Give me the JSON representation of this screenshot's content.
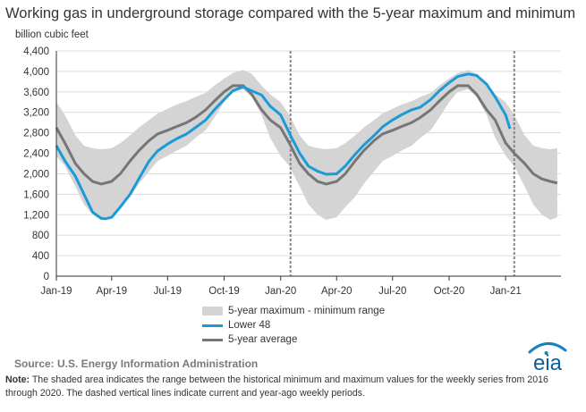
{
  "title": "Working gas in underground storage compared with the 5-year maximum and minimum",
  "source": "Source:  U.S. Energy Information Administration",
  "note_label": "Note:",
  "note_text": " The shaded area indicates the range between the historical minimum and maximum values for the weekly series from 2016 through 2020. The dashed vertical lines indicate current and year-ago weekly periods.",
  "logo_text": "eia",
  "colors": {
    "lower48": "#1a9bd7",
    "average": "#767676",
    "band": "#d4d4d4",
    "dashed": "#888888"
  },
  "chart_data": {
    "type": "line",
    "ylabel": "billion cubic feet",
    "ylim": [
      0,
      4400
    ],
    "yticks": [
      0,
      400,
      800,
      1200,
      1600,
      2000,
      2400,
      2800,
      3200,
      3600,
      4000,
      4400
    ],
    "ytick_labels": [
      "0",
      "400",
      "800",
      "1,200",
      "1,600",
      "2,000",
      "2,400",
      "2,800",
      "3,200",
      "3,600",
      "4,000",
      "4,400"
    ],
    "xlim": [
      "2019-01-01",
      "2021-04-01"
    ],
    "xticks": [
      "2019-01-01",
      "2019-04-01",
      "2019-07-01",
      "2019-10-01",
      "2020-01-01",
      "2020-04-01",
      "2020-07-01",
      "2020-10-01",
      "2021-01-01"
    ],
    "xtick_labels": [
      "Jan-19",
      "Apr-19",
      "Jul-19",
      "Oct-19",
      "Jan-20",
      "Apr-20",
      "Jul-20",
      "Oct-20",
      "Jan-21"
    ],
    "grid": "horizontal",
    "vlines_dashed": [
      "2020-01-17",
      "2021-01-15"
    ],
    "band": {
      "name": "5-year maximum - minimum range",
      "x": [
        "2019-01-01",
        "2019-01-15",
        "2019-02-01",
        "2019-02-15",
        "2019-03-01",
        "2019-03-15",
        "2019-04-01",
        "2019-04-15",
        "2019-05-01",
        "2019-05-15",
        "2019-06-01",
        "2019-06-15",
        "2019-07-01",
        "2019-07-15",
        "2019-08-01",
        "2019-08-15",
        "2019-09-01",
        "2019-09-15",
        "2019-10-01",
        "2019-10-15",
        "2019-11-01",
        "2019-11-15",
        "2019-12-01",
        "2019-12-15",
        "2020-01-01",
        "2020-01-15",
        "2020-02-01",
        "2020-02-15",
        "2020-03-01",
        "2020-03-15",
        "2020-04-01",
        "2020-04-15",
        "2020-05-01",
        "2020-05-15",
        "2020-06-01",
        "2020-06-15",
        "2020-07-01",
        "2020-07-15",
        "2020-08-01",
        "2020-08-15",
        "2020-09-01",
        "2020-09-15",
        "2020-10-01",
        "2020-10-15",
        "2020-11-01",
        "2020-11-15",
        "2020-12-01",
        "2020-12-15",
        "2021-01-01",
        "2021-01-15",
        "2021-02-01",
        "2021-02-15",
        "2021-03-01",
        "2021-03-15",
        "2021-03-26"
      ],
      "upper": [
        3400,
        3150,
        2750,
        2550,
        2500,
        2480,
        2500,
        2600,
        2750,
        2900,
        3050,
        3180,
        3270,
        3350,
        3420,
        3500,
        3580,
        3720,
        3860,
        3970,
        4030,
        3950,
        3720,
        3550,
        3400,
        3150,
        2750,
        2550,
        2500,
        2480,
        2500,
        2600,
        2750,
        2900,
        3050,
        3180,
        3270,
        3350,
        3420,
        3500,
        3580,
        3720,
        3860,
        3970,
        4030,
        3950,
        3720,
        3550,
        3400,
        3150,
        2750,
        2550,
        2500,
        2480,
        2500
      ],
      "lower": [
        2350,
        2150,
        1750,
        1400,
        1200,
        1100,
        1150,
        1350,
        1550,
        1800,
        2050,
        2250,
        2350,
        2450,
        2550,
        2700,
        2850,
        3100,
        3400,
        3600,
        3650,
        3500,
        3150,
        2700,
        2350,
        2150,
        1750,
        1400,
        1200,
        1100,
        1150,
        1350,
        1550,
        1800,
        2050,
        2250,
        2350,
        2450,
        2550,
        2700,
        2850,
        3100,
        3400,
        3600,
        3650,
        3500,
        3150,
        2700,
        2350,
        2150,
        1750,
        1400,
        1200,
        1100,
        1150
      ]
    },
    "series": [
      {
        "name": "Lower 48",
        "x": [
          "2019-01-01",
          "2019-01-15",
          "2019-02-01",
          "2019-02-15",
          "2019-03-01",
          "2019-03-15",
          "2019-03-22",
          "2019-04-01",
          "2019-04-15",
          "2019-05-01",
          "2019-05-15",
          "2019-06-01",
          "2019-06-15",
          "2019-07-01",
          "2019-07-15",
          "2019-08-01",
          "2019-08-15",
          "2019-09-01",
          "2019-09-15",
          "2019-10-01",
          "2019-10-15",
          "2019-11-01",
          "2019-11-15",
          "2019-12-01",
          "2019-12-15",
          "2020-01-01",
          "2020-01-17",
          "2020-02-01",
          "2020-02-15",
          "2020-03-01",
          "2020-03-15",
          "2020-04-01",
          "2020-04-15",
          "2020-05-01",
          "2020-05-15",
          "2020-06-01",
          "2020-06-15",
          "2020-07-01",
          "2020-07-15",
          "2020-08-01",
          "2020-08-15",
          "2020-09-01",
          "2020-09-15",
          "2020-10-01",
          "2020-10-15",
          "2020-11-01",
          "2020-11-15",
          "2020-12-01",
          "2020-12-15",
          "2021-01-01",
          "2021-01-08"
        ],
        "values": [
          2550,
          2250,
          1950,
          1600,
          1250,
          1130,
          1120,
          1150,
          1350,
          1600,
          1900,
          2250,
          2450,
          2580,
          2680,
          2780,
          2900,
          3050,
          3250,
          3450,
          3620,
          3700,
          3620,
          3540,
          3320,
          3150,
          2750,
          2400,
          2150,
          2050,
          1990,
          2000,
          2150,
          2380,
          2560,
          2750,
          2920,
          3050,
          3150,
          3250,
          3300,
          3450,
          3620,
          3780,
          3900,
          3950,
          3920,
          3750,
          3500,
          3150,
          2880
        ]
      },
      {
        "name": "5-year average",
        "x": [
          "2019-01-01",
          "2019-01-15",
          "2019-02-01",
          "2019-02-15",
          "2019-03-01",
          "2019-03-15",
          "2019-04-01",
          "2019-04-15",
          "2019-05-01",
          "2019-05-15",
          "2019-06-01",
          "2019-06-15",
          "2019-07-01",
          "2019-07-15",
          "2019-08-01",
          "2019-08-15",
          "2019-09-01",
          "2019-09-15",
          "2019-10-01",
          "2019-10-15",
          "2019-11-01",
          "2019-11-15",
          "2019-12-01",
          "2019-12-15",
          "2020-01-01",
          "2020-01-15",
          "2020-02-01",
          "2020-02-15",
          "2020-03-01",
          "2020-03-15",
          "2020-04-01",
          "2020-04-15",
          "2020-05-01",
          "2020-05-15",
          "2020-06-01",
          "2020-06-15",
          "2020-07-01",
          "2020-07-15",
          "2020-08-01",
          "2020-08-15",
          "2020-09-01",
          "2020-09-15",
          "2020-10-01",
          "2020-10-15",
          "2020-11-01",
          "2020-11-15",
          "2020-12-01",
          "2020-12-15",
          "2021-01-01",
          "2021-01-15",
          "2021-02-01",
          "2021-02-15",
          "2021-03-01",
          "2021-03-15",
          "2021-03-26"
        ],
        "values": [
          2900,
          2600,
          2200,
          2000,
          1850,
          1800,
          1850,
          2000,
          2250,
          2450,
          2650,
          2780,
          2850,
          2920,
          3000,
          3100,
          3250,
          3420,
          3600,
          3720,
          3720,
          3550,
          3250,
          3050,
          2900,
          2600,
          2200,
          2000,
          1850,
          1800,
          1850,
          2000,
          2250,
          2450,
          2650,
          2780,
          2850,
          2920,
          3000,
          3100,
          3250,
          3420,
          3600,
          3720,
          3720,
          3550,
          3250,
          3050,
          2600,
          2400,
          2200,
          2000,
          1900,
          1850,
          1820
        ]
      }
    ],
    "legend": [
      "5-year maximum - minimum range",
      "Lower 48",
      "5-year average"
    ],
    "legend_position": "bottom"
  }
}
